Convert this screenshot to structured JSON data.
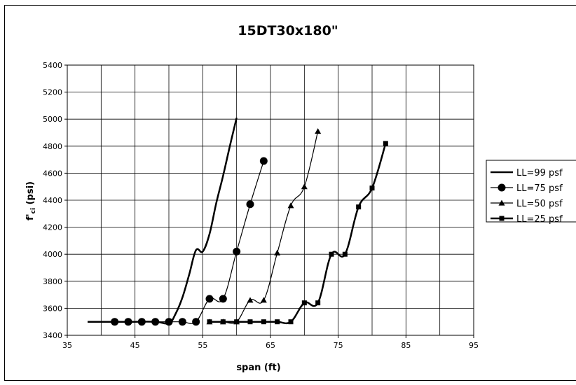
{
  "chart_data": {
    "type": "line",
    "title": "15DT30x180\"",
    "xlabel": "span (ft)",
    "ylabel": "f'ci (psi)",
    "ylabel_main": "f'",
    "ylabel_sub": "ci",
    "ylabel_rest": " (psi)",
    "xlim": [
      35,
      95
    ],
    "ylim": [
      3400,
      5400
    ],
    "x_gridlines": [
      35,
      40,
      45,
      50,
      55,
      60,
      65,
      70,
      75,
      80,
      85,
      90,
      95
    ],
    "x_tick_labels": [
      35,
      45,
      55,
      65,
      75,
      85,
      95
    ],
    "y_ticks": [
      3400,
      3600,
      3800,
      4000,
      4200,
      4400,
      4600,
      4800,
      5000,
      5200,
      5400
    ],
    "grid": true,
    "legend_position": "right",
    "series": [
      {
        "name": "LL=99 psf",
        "marker": "none",
        "stroke_width": 2.5,
        "color": "#000000",
        "x": [
          38,
          44,
          48,
          50,
          51,
          52,
          53,
          54,
          55,
          56,
          57,
          58,
          59,
          60
        ],
        "y": [
          3500,
          3500,
          3500,
          3490,
          3560,
          3680,
          3850,
          4030,
          4020,
          4150,
          4380,
          4580,
          4800,
          5010
        ]
      },
      {
        "name": "LL=75 psf",
        "marker": "circle",
        "stroke_width": 1.2,
        "color": "#000000",
        "x": [
          42,
          44,
          46,
          48,
          50,
          52,
          54,
          56,
          58,
          60,
          62,
          64
        ],
        "y": [
          3500,
          3500,
          3500,
          3500,
          3500,
          3500,
          3500,
          3670,
          3670,
          4020,
          4370,
          4690
        ]
      },
      {
        "name": "LL=50 psf",
        "marker": "triangle",
        "stroke_width": 1.2,
        "color": "#000000",
        "x": [
          56,
          58,
          60,
          62,
          64,
          66,
          68,
          70,
          72
        ],
        "y": [
          3500,
          3500,
          3500,
          3660,
          3660,
          4010,
          4360,
          4500,
          4910
        ]
      },
      {
        "name": "LL=25 psf",
        "marker": "square",
        "stroke_width": 2.5,
        "color": "#000000",
        "x": [
          56,
          58,
          60,
          62,
          64,
          66,
          68,
          70,
          72,
          74,
          76,
          78,
          80,
          82
        ],
        "y": [
          3500,
          3500,
          3500,
          3500,
          3500,
          3500,
          3500,
          3640,
          3640,
          4000,
          4000,
          4350,
          4490,
          4820
        ]
      }
    ]
  }
}
